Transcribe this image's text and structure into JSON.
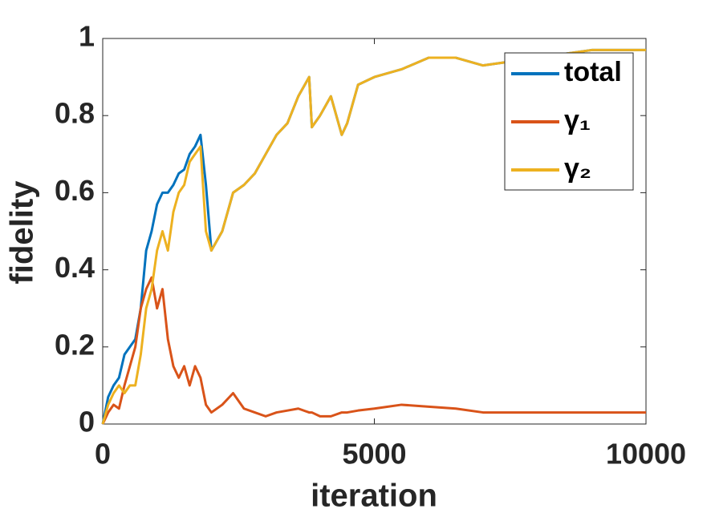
{
  "chart_data": {
    "type": "line",
    "x_label": "iteration",
    "y_label": "fidelity",
    "x": [
      0,
      100,
      200,
      300,
      400,
      500,
      600,
      700,
      800,
      900,
      1000,
      1100,
      1200,
      1300,
      1400,
      1500,
      1600,
      1700,
      1800,
      1900,
      2000,
      2200,
      2400,
      2600,
      2800,
      3000,
      3200,
      3400,
      3600,
      3800,
      3850,
      4000,
      4200,
      4400,
      4500,
      4700,
      5000,
      5500,
      6000,
      6500,
      7000,
      7500,
      8000,
      8500,
      9000,
      9500,
      10000
    ],
    "series": [
      {
        "name": "total",
        "color": "#0072bd",
        "values": [
          0.0,
          0.07,
          0.1,
          0.12,
          0.18,
          0.2,
          0.22,
          0.3,
          0.45,
          0.5,
          0.57,
          0.6,
          0.6,
          0.62,
          0.65,
          0.66,
          0.7,
          0.72,
          0.75,
          0.62,
          0.45,
          0.5,
          0.6,
          0.62,
          0.65,
          0.7,
          0.75,
          0.78,
          0.85,
          0.9,
          0.77,
          0.8,
          0.85,
          0.75,
          0.78,
          0.88,
          0.9,
          0.92,
          0.95,
          0.95,
          0.93,
          0.94,
          0.95,
          0.96,
          0.97,
          0.97,
          0.97
        ]
      },
      {
        "name": "γ₁",
        "color": "#d95319",
        "values": [
          0.0,
          0.03,
          0.05,
          0.04,
          0.1,
          0.15,
          0.2,
          0.3,
          0.35,
          0.38,
          0.3,
          0.35,
          0.22,
          0.15,
          0.12,
          0.15,
          0.1,
          0.15,
          0.12,
          0.05,
          0.03,
          0.05,
          0.08,
          0.04,
          0.03,
          0.02,
          0.03,
          0.035,
          0.04,
          0.03,
          0.03,
          0.02,
          0.02,
          0.03,
          0.03,
          0.035,
          0.04,
          0.05,
          0.045,
          0.04,
          0.03,
          0.03,
          0.03,
          0.03,
          0.03,
          0.03,
          0.03
        ]
      },
      {
        "name": "γ₂",
        "color": "#edb120",
        "values": [
          0.0,
          0.05,
          0.08,
          0.1,
          0.08,
          0.1,
          0.1,
          0.18,
          0.3,
          0.35,
          0.45,
          0.5,
          0.45,
          0.55,
          0.6,
          0.62,
          0.68,
          0.7,
          0.72,
          0.5,
          0.45,
          0.5,
          0.6,
          0.62,
          0.65,
          0.7,
          0.75,
          0.78,
          0.85,
          0.9,
          0.77,
          0.8,
          0.85,
          0.75,
          0.78,
          0.88,
          0.9,
          0.92,
          0.95,
          0.95,
          0.93,
          0.94,
          0.95,
          0.96,
          0.97,
          0.97,
          0.97
        ]
      }
    ],
    "xlim": [
      0,
      10000
    ],
    "xticks": [
      0,
      5000,
      10000
    ],
    "ylim": [
      0,
      1
    ],
    "yticks": [
      0,
      0.2,
      0.4,
      0.6,
      0.8,
      1
    ],
    "legend": "top-right"
  }
}
